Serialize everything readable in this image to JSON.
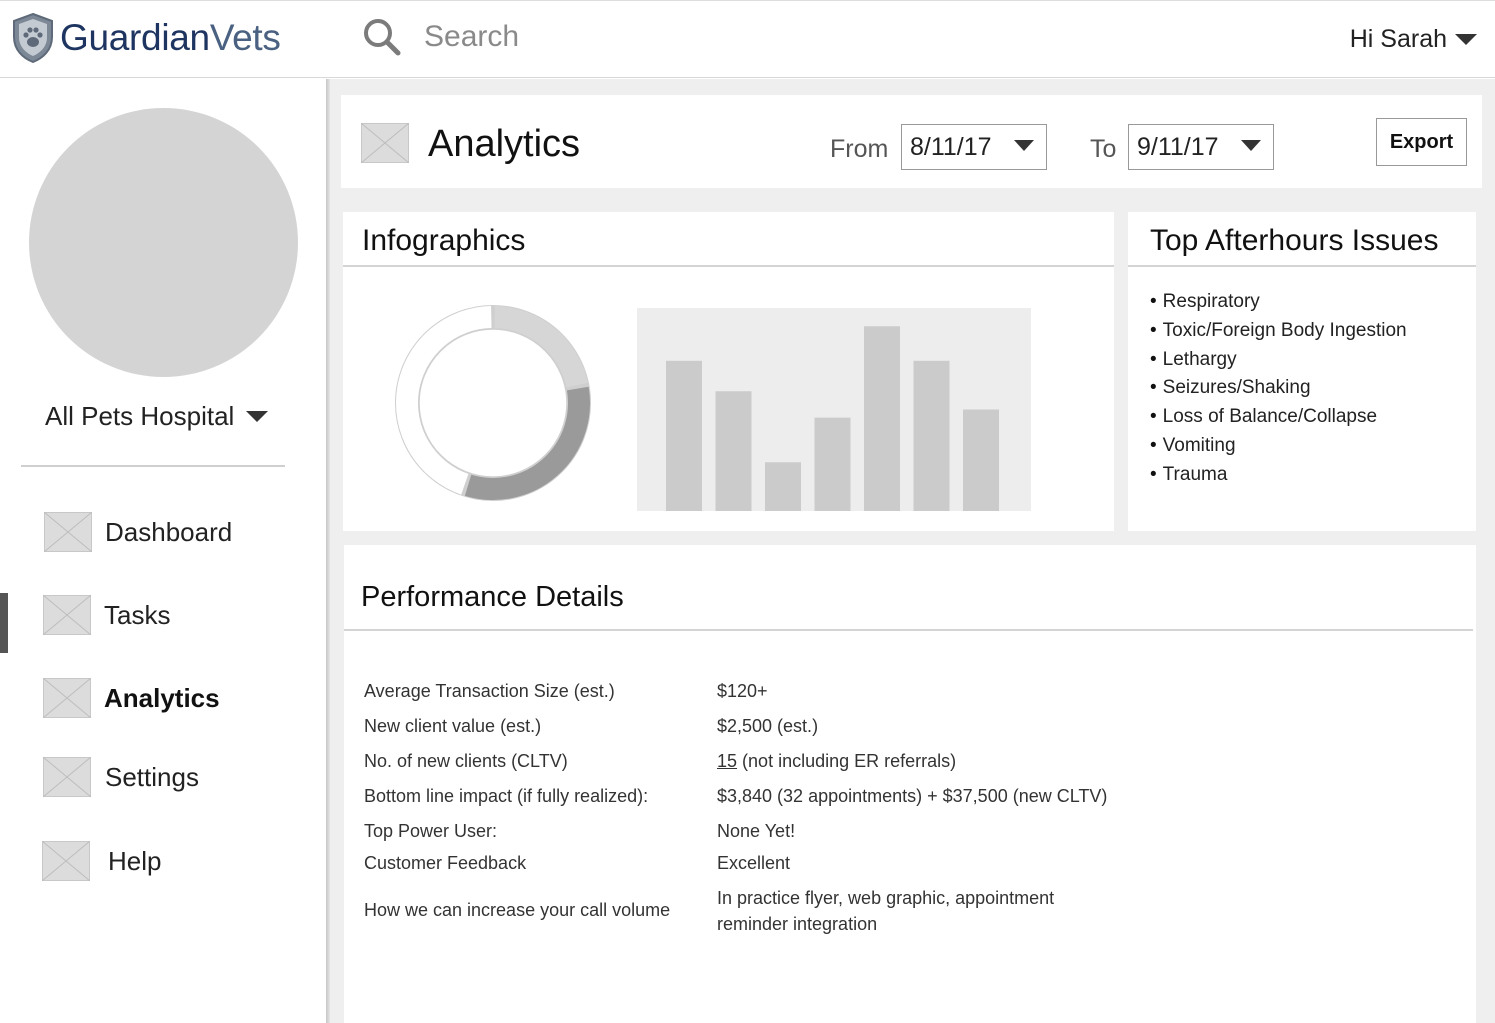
{
  "app": {
    "brand_main": "Guardian",
    "brand_accent": "Vets",
    "brand_color": "#1f3561"
  },
  "search": {
    "placeholder": "Search",
    "icon": "search-icon"
  },
  "user": {
    "greeting": "Hi Sarah"
  },
  "sidebar": {
    "hospital": "All Pets Hospital",
    "items": [
      {
        "label": "Dashboard",
        "icon": "image-placeholder-icon",
        "active": false
      },
      {
        "label": "Tasks",
        "icon": "image-placeholder-icon",
        "active": false
      },
      {
        "label": "Analytics",
        "icon": "image-placeholder-icon",
        "active": true
      },
      {
        "label": "Settings",
        "icon": "image-placeholder-icon",
        "active": false
      },
      {
        "label": "Help",
        "icon": "image-placeholder-icon",
        "active": false
      }
    ]
  },
  "header": {
    "title": "Analytics",
    "from_label": "From",
    "from_value": "8/11/17",
    "to_label": "To",
    "to_value": "9/11/17",
    "export_label": "Export"
  },
  "infographics": {
    "title": "Infographics",
    "donut": {
      "segments": [
        {
          "fraction": 0.22,
          "color": "#d6d6d6"
        },
        {
          "fraction": 0.33,
          "color": "#9a9a9a"
        },
        {
          "fraction": 0.45,
          "color": "#ffffff"
        }
      ]
    },
    "bars": {
      "values": [
        0.74,
        0.59,
        0.24,
        0.46,
        0.91,
        0.74,
        0.5
      ],
      "bar_color": "#cbcbcb",
      "bg_color": "#ededed"
    }
  },
  "issues": {
    "title": "Top Afterhours Issues",
    "items": [
      "Respiratory",
      "Toxic/Foreign Body Ingestion",
      "Lethargy",
      "Seizures/Shaking",
      "Loss of Balance/Collapse",
      "Vomiting",
      "Trauma"
    ]
  },
  "performance": {
    "title": "Performance Details",
    "rows": [
      {
        "label": "Average Transaction Size (est.)",
        "value": "$120+"
      },
      {
        "label": "New client value (est.)",
        "value": "$2,500 (est.)"
      },
      {
        "label": "No. of new clients (CLTV)",
        "value_num": "15",
        "value": "(not including ER referrals)"
      },
      {
        "label": "Bottom line impact (if fully realized):",
        "value": "$3,840 (32 appointments) + $37,500 (new CLTV)"
      },
      {
        "label": "Top Power User:",
        "value": "None Yet!"
      },
      {
        "label": "Customer Feedback",
        "value": "Excellent"
      },
      {
        "label": "How we can increase your call volume",
        "value": "In practice flyer, web graphic, appointment reminder integration"
      }
    ]
  }
}
